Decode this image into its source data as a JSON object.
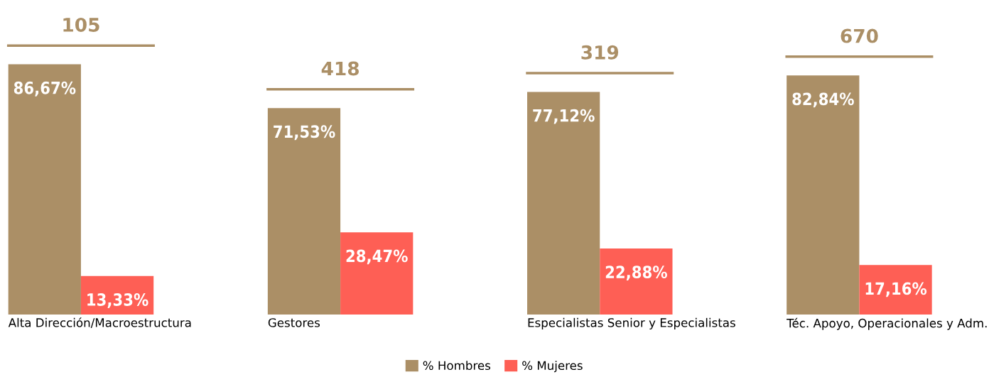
{
  "chart_data": {
    "type": "bar",
    "categories": [
      "Alta Dirección/Macroestructura",
      "Gestores",
      "Especialistas Senior y Especialistas",
      "Téc. Apoyo, Operacionales y Adm."
    ],
    "series": [
      {
        "name": "% Hombres",
        "color": "#ab8f66",
        "values": [
          86.67,
          71.53,
          77.12,
          82.84
        ],
        "value_labels": [
          "86,67%",
          "71,53%",
          "77,12%",
          "82,84%"
        ]
      },
      {
        "name": "% Mujeres",
        "color": "#fe5f55",
        "values": [
          13.33,
          28.47,
          22.88,
          17.16
        ],
        "value_labels": [
          "13,33%",
          "28,47%",
          "22,88%",
          "17,16%"
        ]
      }
    ],
    "annotations": [
      "105",
      "418",
      "319",
      "670"
    ],
    "legend": "bottom",
    "grid": false,
    "tick_labels": "x"
  }
}
